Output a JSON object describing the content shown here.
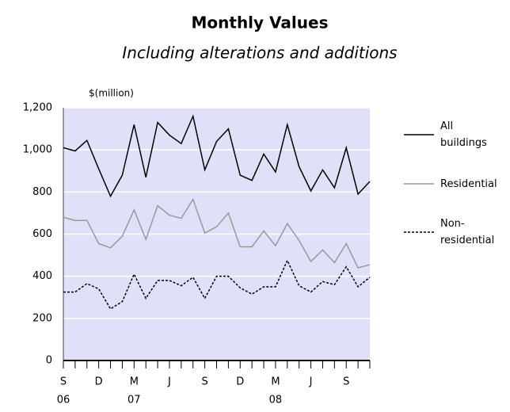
{
  "chart_data": {
    "type": "line",
    "title": "Monthly Values",
    "subtitle": "Including alterations and additions",
    "y_unit_label": "$(million)",
    "categories": [
      "S",
      null,
      null,
      "D",
      null,
      null,
      "M",
      null,
      null,
      "J",
      null,
      null,
      "S",
      null,
      null,
      "D",
      null,
      null,
      "M",
      null,
      null,
      "J",
      null,
      null,
      "S",
      null,
      null
    ],
    "years": [
      "06",
      null,
      null,
      null,
      null,
      null,
      "07",
      null,
      null,
      null,
      null,
      null,
      null,
      null,
      null,
      null,
      null,
      null,
      "08",
      null,
      null,
      null,
      null,
      null,
      null,
      null,
      null
    ],
    "series": [
      {
        "name": "All buildings",
        "color": "#000000",
        "dash": "solid",
        "values": [
          1010,
          995,
          1045,
          910,
          780,
          880,
          1120,
          870,
          1130,
          1070,
          1030,
          1160,
          905,
          1040,
          1100,
          880,
          855,
          980,
          895,
          1120,
          920,
          805,
          905,
          820,
          1010,
          790,
          850
        ]
      },
      {
        "name": "Residential",
        "color": "#999999",
        "dash": "solid",
        "values": [
          680,
          665,
          665,
          555,
          535,
          590,
          715,
          575,
          735,
          690,
          675,
          765,
          605,
          635,
          700,
          540,
          540,
          615,
          545,
          650,
          570,
          470,
          525,
          465,
          555,
          440,
          455
        ]
      },
      {
        "name": "Non-residential",
        "color": "#000000",
        "dash": "dashed",
        "values": [
          325,
          325,
          365,
          340,
          245,
          280,
          410,
          295,
          380,
          380,
          355,
          395,
          295,
          400,
          400,
          345,
          315,
          350,
          350,
          475,
          355,
          325,
          375,
          360,
          445,
          350,
          395
        ]
      }
    ],
    "ylim": [
      0,
      1200
    ],
    "yticks": [
      0,
      200,
      400,
      600,
      800,
      {
        "value": 1000,
        "label": "1,000"
      },
      {
        "value": 1200,
        "label": "1,200"
      }
    ],
    "grid": true,
    "plot_background": "#e0e0f8",
    "legend": "right"
  }
}
